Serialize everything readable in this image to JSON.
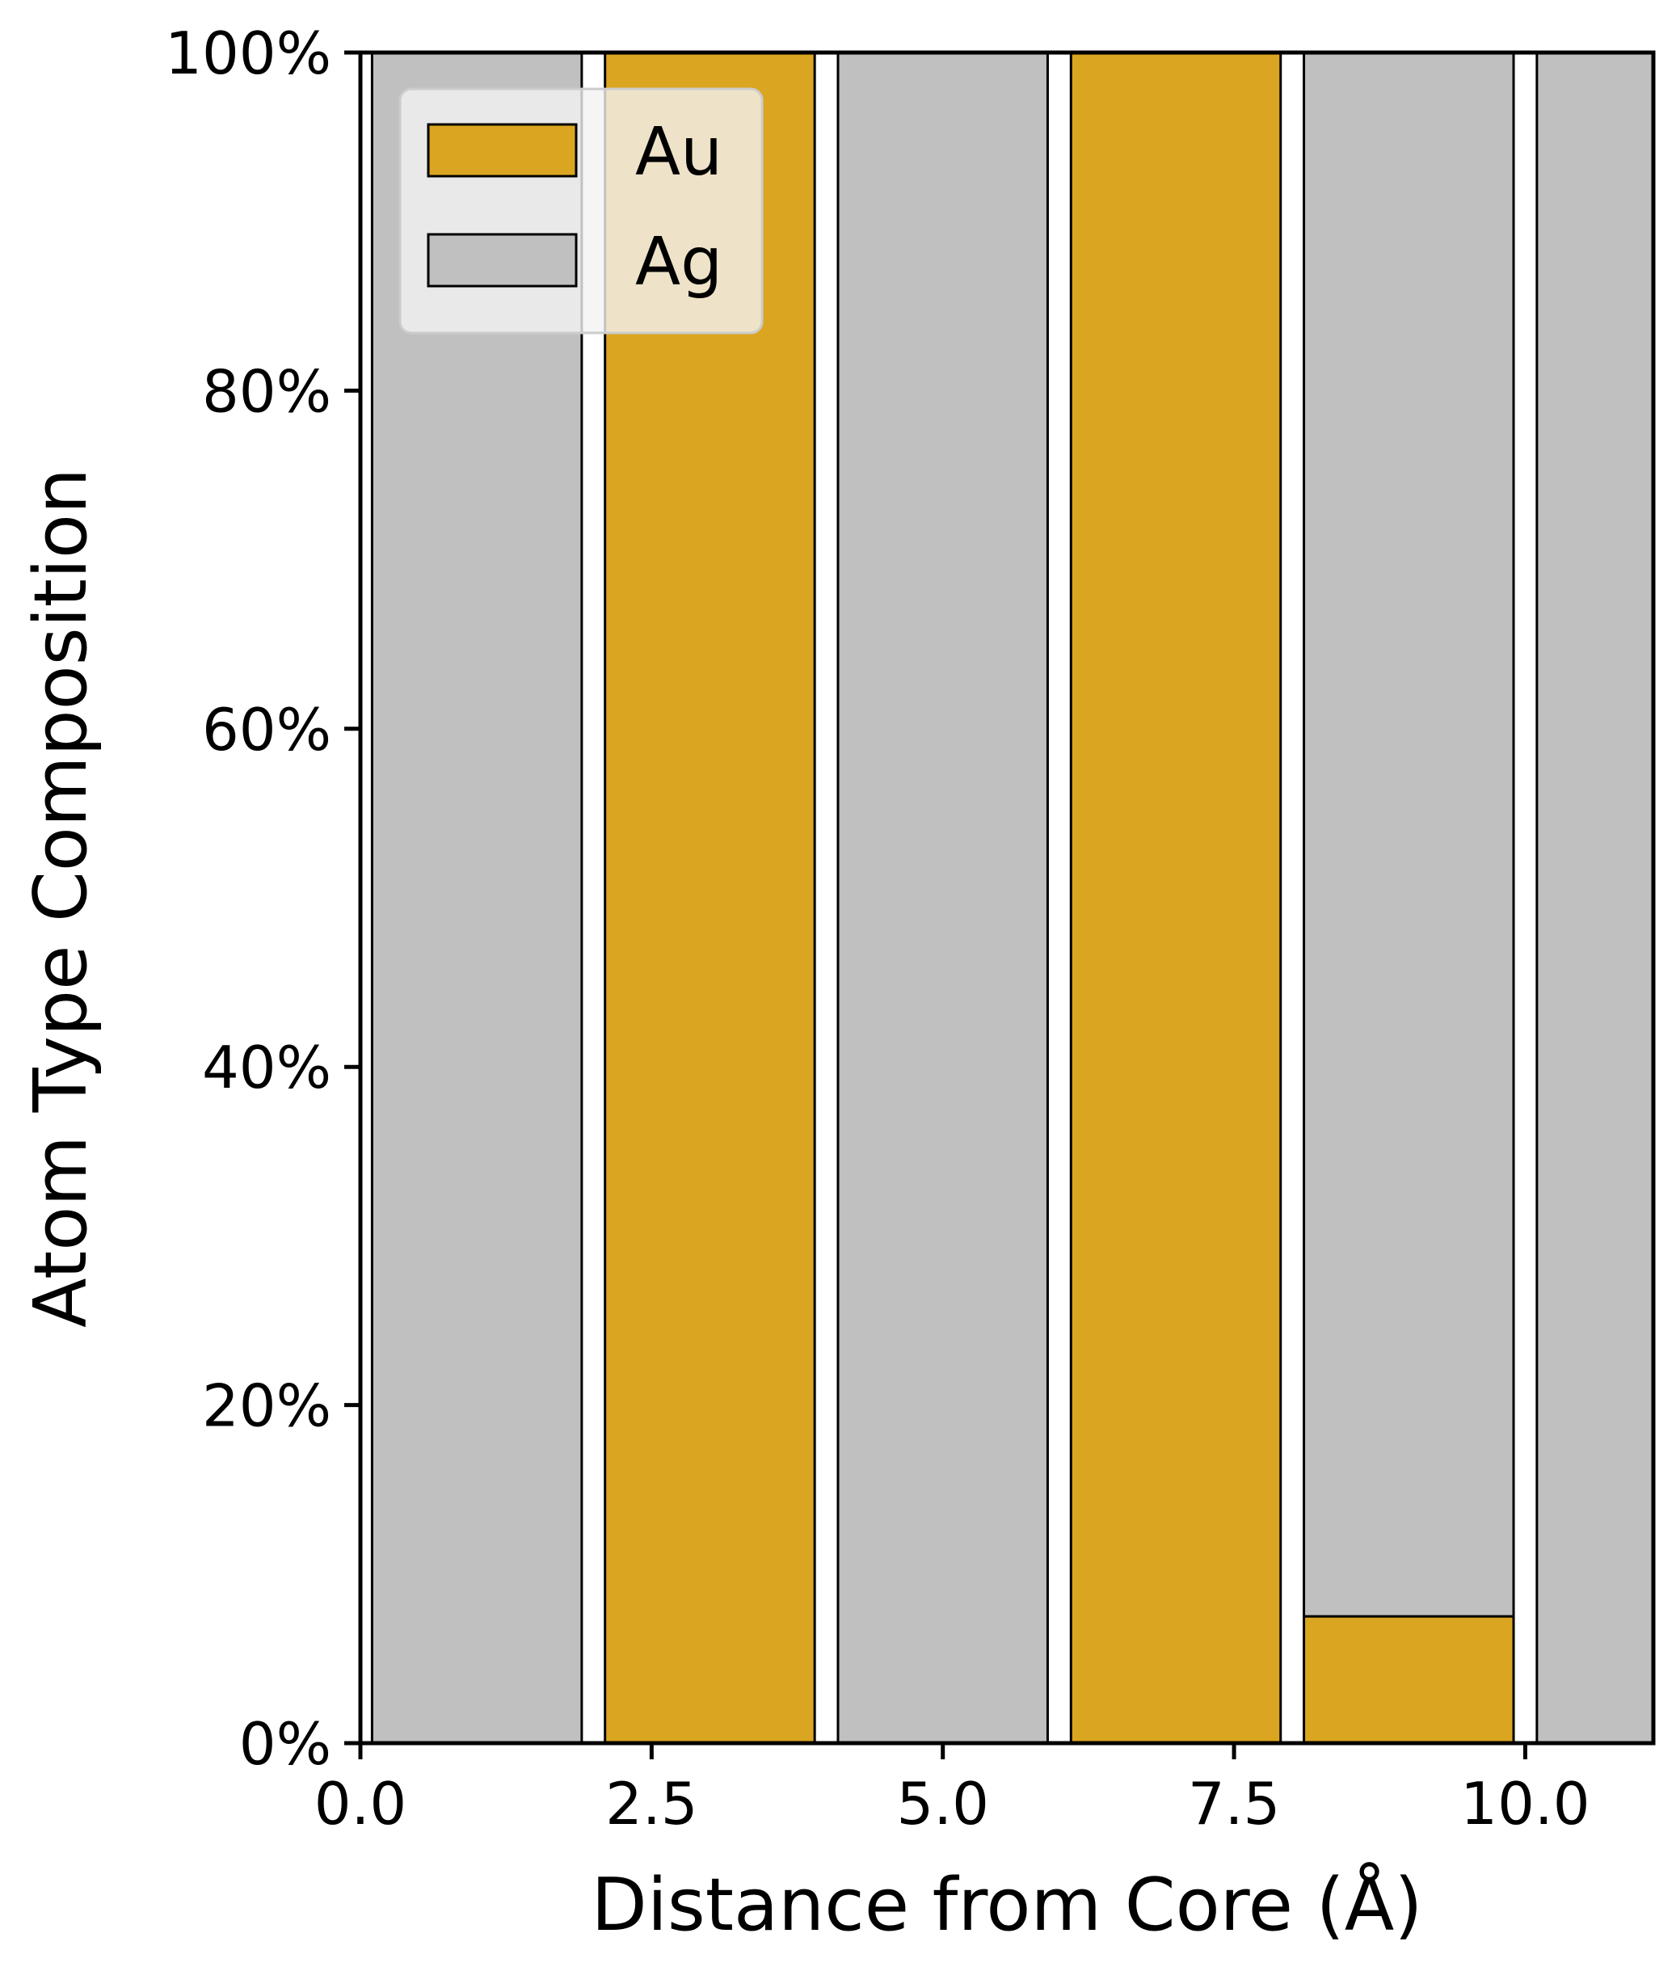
{
  "chart_data": {
    "type": "bar",
    "stacked": true,
    "percent_axis": true,
    "xlabel": "Distance from Core (Å)",
    "ylabel": "Atom Type Composition",
    "xlim": [
      0,
      11.1
    ],
    "ylim": [
      0,
      100
    ],
    "x_ticks": [
      "0.0",
      "2.5",
      "5.0",
      "7.5",
      "10.0"
    ],
    "x_tick_values": [
      0,
      2.5,
      5.0,
      7.5,
      10.0
    ],
    "y_ticks": [
      "0%",
      "20%",
      "40%",
      "60%",
      "80%",
      "100%"
    ],
    "y_tick_values": [
      0,
      20,
      40,
      60,
      80,
      100
    ],
    "bar_width": 1.8,
    "x": [
      1,
      3,
      5,
      7,
      9,
      11
    ],
    "series": [
      {
        "name": "Au",
        "color": "#DAA520",
        "values": [
          0,
          100,
          0,
          100,
          7.5,
          0
        ]
      },
      {
        "name": "Ag",
        "color": "#C0C0C0",
        "values": [
          100,
          0,
          100,
          0,
          92.5,
          100
        ]
      }
    ],
    "legend": {
      "placement": "upper left",
      "items": [
        "Au",
        "Ag"
      ]
    },
    "grid": false
  }
}
